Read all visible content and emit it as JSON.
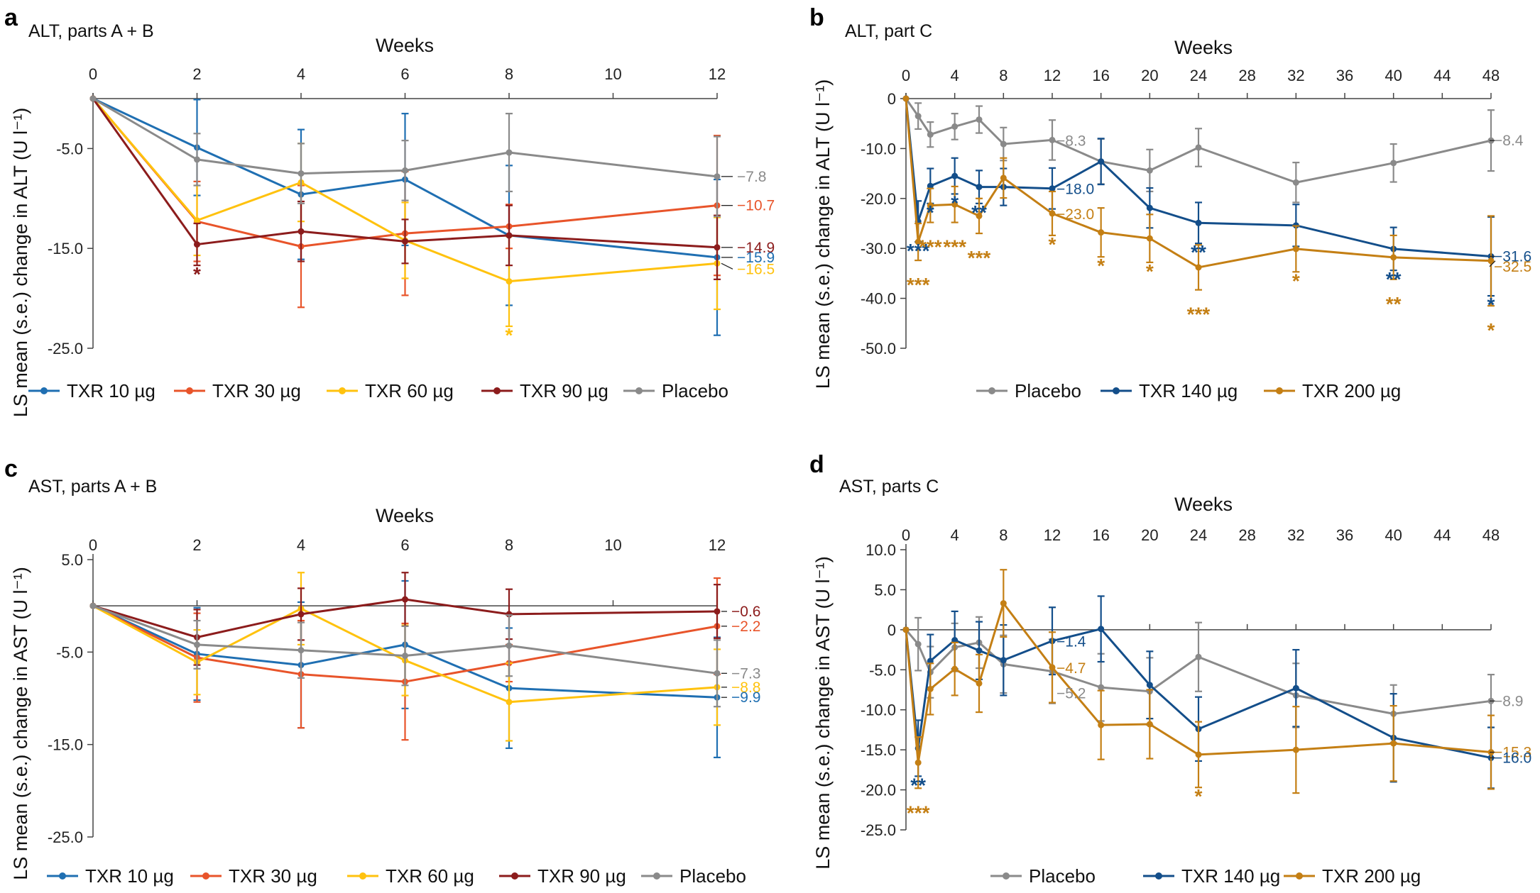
{
  "colors": {
    "TXR 10 µg": "#1f6fb2",
    "TXR 30 µg": "#e8542a",
    "TXR 60 µg": "#ffc20e",
    "TXR 90 µg": "#8c1c1c",
    "Placebo": "#8a8a8a",
    "TXR 140 µg": "#134e8a",
    "TXR 200 µg": "#c47f14"
  },
  "chart_data": [
    {
      "panel": "a",
      "type": "line",
      "title": "ALT, parts A + B",
      "xlabel": "Weeks",
      "ylabel": "LS mean (s.e.) change in ALT (U l⁻¹)",
      "x_ticks": [
        "0",
        "2",
        "4",
        "6",
        "8",
        "10",
        "12"
      ],
      "y_ticks": [
        "-5.0",
        "-15.0",
        "-25.0"
      ],
      "xlim": [
        0,
        12
      ],
      "ylim": [
        -25,
        0
      ],
      "grid": false,
      "legend": "bottom",
      "series": [
        {
          "name": "TXR 10 µg",
          "x": [
            0,
            2,
            4,
            6,
            8,
            12
          ],
          "values": [
            0,
            -4.9,
            -9.6,
            -8.1,
            -13.7,
            -15.9
          ],
          "err": [
            0,
            4.8,
            6.5,
            6.6,
            7.0,
            7.8
          ]
        },
        {
          "name": "TXR 30 µg",
          "x": [
            0,
            2,
            4,
            6,
            8,
            12
          ],
          "values": [
            0,
            -12.3,
            -14.8,
            -13.5,
            -12.8,
            -10.7
          ],
          "err": [
            0,
            4.0,
            6.1,
            6.2,
            2.2,
            7.0
          ]
        },
        {
          "name": "TXR 60 µg",
          "x": [
            0,
            2,
            4,
            6,
            8,
            12
          ],
          "values": [
            0,
            -12.2,
            -8.4,
            -14.2,
            -18.3,
            -16.5
          ],
          "err": [
            0,
            3.5,
            3.9,
            3.8,
            4.5,
            4.6
          ]
        },
        {
          "name": "TXR 90 µg",
          "x": [
            0,
            2,
            4,
            6,
            8,
            12
          ],
          "values": [
            0,
            -14.6,
            -13.3,
            -14.3,
            -13.7,
            -14.9
          ],
          "err": [
            0,
            2.1,
            3.0,
            2.2,
            3.0,
            3.2
          ]
        },
        {
          "name": "Placebo",
          "x": [
            0,
            2,
            4,
            6,
            8,
            12
          ],
          "values": [
            0,
            -6.1,
            -7.5,
            -7.2,
            -5.4,
            -7.8
          ],
          "err": [
            0,
            2.6,
            3.0,
            3.0,
            3.9,
            4.0
          ]
        }
      ],
      "end_labels": [
        {
          "series": "Placebo",
          "text": "−7.8"
        },
        {
          "series": "TXR 30 µg",
          "text": "−10.7"
        },
        {
          "series": "TXR 90 µg",
          "text": "−14.9"
        },
        {
          "series": "TXR 10 µg",
          "text": "−15.9"
        },
        {
          "series": "TXR 60 µg",
          "text": "−16.5"
        }
      ],
      "annotations": [
        {
          "series": "TXR 90 µg",
          "x": 2,
          "text": "*"
        },
        {
          "series": "TXR 60 µg",
          "x": 8,
          "text": "*"
        }
      ]
    },
    {
      "panel": "b",
      "type": "line",
      "title": "ALT, part C",
      "xlabel": "Weeks",
      "ylabel": "LS mean (s.e.) change in ALT (U l⁻¹)",
      "x_ticks": [
        "0",
        "4",
        "8",
        "12",
        "16",
        "20",
        "24",
        "28",
        "32",
        "36",
        "40",
        "44",
        "48"
      ],
      "y_ticks": [
        "0",
        "-10.0",
        "-20.0",
        "-30.0",
        "-40.0",
        "-50.0"
      ],
      "xlim": [
        0,
        48
      ],
      "ylim": [
        -50,
        0
      ],
      "grid": false,
      "legend": "bottom",
      "series": [
        {
          "name": "Placebo",
          "x": [
            0,
            1,
            2,
            4,
            6,
            8,
            12,
            16,
            20,
            24,
            32,
            40,
            48
          ],
          "values": [
            0,
            -3.5,
            -7.2,
            -5.6,
            -4.2,
            -9.1,
            -8.3,
            -12.6,
            -14.4,
            -9.8,
            -16.8,
            -12.9,
            -8.4
          ],
          "err": [
            0,
            2.6,
            2.5,
            2.6,
            2.7,
            3.3,
            4.0,
            4.5,
            4.2,
            3.8,
            4.0,
            3.8,
            6.1
          ]
        },
        {
          "name": "TXR 140 µg",
          "x": [
            0,
            1,
            2,
            4,
            6,
            8,
            12,
            16,
            20,
            24,
            32,
            40,
            48
          ],
          "values": [
            0,
            -24.6,
            -17.5,
            -15.5,
            -17.7,
            -17.7,
            -18.0,
            -12.6,
            -21.9,
            -24.9,
            -25.4,
            -30.1,
            -31.6
          ],
          "err": [
            0,
            4.1,
            3.5,
            3.6,
            3.3,
            3.7,
            4.1,
            4.6,
            4.0,
            4.1,
            4.2,
            4.3,
            7.9
          ]
        },
        {
          "name": "TXR 200 µg",
          "x": [
            0,
            1,
            2,
            4,
            6,
            8,
            12,
            16,
            20,
            24,
            32,
            40,
            48
          ],
          "values": [
            0,
            -28.7,
            -21.4,
            -21.2,
            -23.5,
            -15.9,
            -23.0,
            -26.8,
            -28.0,
            -33.8,
            -30.1,
            -31.8,
            -32.5
          ],
          "err": [
            0,
            3.7,
            3.4,
            3.6,
            3.5,
            4.0,
            4.4,
            4.9,
            4.8,
            4.5,
            4.6,
            4.4,
            9.0
          ]
        }
      ],
      "end_labels": [
        {
          "series": "Placebo",
          "text": "−8.4"
        },
        {
          "series": "TXR 140 µg",
          "text": "−31.6"
        },
        {
          "series": "TXR 200 µg",
          "text": "−32.5"
        }
      ],
      "inline_labels": [
        {
          "series": "Placebo",
          "x": 12,
          "text": "−8.3"
        },
        {
          "series": "TXR 140 µg",
          "x": 12,
          "text": "−18.0"
        },
        {
          "series": "TXR 200 µg",
          "x": 12,
          "text": "−23.0"
        }
      ],
      "annotations": [
        {
          "series": "TXR 140 µg",
          "x": 1,
          "text": "***"
        },
        {
          "series": "TXR 200 µg",
          "x": 1,
          "text": "***"
        },
        {
          "series": "TXR 140 µg",
          "x": 2,
          "text": "*"
        },
        {
          "series": "TXR 200 µg",
          "x": 2,
          "text": "***"
        },
        {
          "series": "TXR 140 µg",
          "x": 4,
          "text": "*"
        },
        {
          "series": "TXR 200 µg",
          "x": 4,
          "text": "***"
        },
        {
          "series": "TXR 140 µg",
          "x": 6,
          "text": "**"
        },
        {
          "series": "TXR 200 µg",
          "x": 6,
          "text": "***"
        },
        {
          "series": "TXR 200 µg",
          "x": 12,
          "text": "*"
        },
        {
          "series": "TXR 200 µg",
          "x": 16,
          "text": "*"
        },
        {
          "series": "TXR 200 µg",
          "x": 20,
          "text": "*"
        },
        {
          "series": "TXR 140 µg",
          "x": 24,
          "text": "**"
        },
        {
          "series": "TXR 200 µg",
          "x": 24,
          "text": "***"
        },
        {
          "series": "TXR 200 µg",
          "x": 32,
          "text": "*"
        },
        {
          "series": "TXR 140 µg",
          "x": 40,
          "text": "**"
        },
        {
          "series": "TXR 200 µg",
          "x": 40,
          "text": "**"
        },
        {
          "series": "TXR 140 µg",
          "x": 48,
          "text": "*"
        },
        {
          "series": "TXR 200 µg",
          "x": 48,
          "text": "*"
        }
      ]
    },
    {
      "panel": "c",
      "type": "line",
      "title": "AST, parts A + B",
      "xlabel": "Weeks",
      "ylabel": "LS mean (s.e.) change in AST (U l⁻¹)",
      "x_ticks": [
        "0",
        "2",
        "4",
        "6",
        "8",
        "10",
        "12"
      ],
      "y_ticks": [
        "5.0",
        "-5.0",
        "-15.0",
        "-25.0"
      ],
      "xlim": [
        0,
        12
      ],
      "ylim": [
        -25,
        5
      ],
      "grid": false,
      "legend": "bottom",
      "series": [
        {
          "name": "TXR 10 µg",
          "x": [
            0,
            2,
            4,
            6,
            8,
            12
          ],
          "values": [
            0,
            -5.2,
            -6.4,
            -4.2,
            -8.9,
            -9.9
          ],
          "err": [
            0,
            5.0,
            6.8,
            6.9,
            6.5,
            6.5
          ]
        },
        {
          "name": "TXR 30 µg",
          "x": [
            0,
            2,
            4,
            6,
            8,
            12
          ],
          "values": [
            0,
            -5.6,
            -7.4,
            -8.2,
            -6.2,
            -2.2
          ],
          "err": [
            0,
            4.8,
            5.8,
            6.3,
            2.0,
            5.2
          ]
        },
        {
          "name": "TXR 60 µg",
          "x": [
            0,
            2,
            4,
            6,
            8,
            12
          ],
          "values": [
            0,
            -6.1,
            -0.3,
            -5.9,
            -10.4,
            -8.8
          ],
          "err": [
            0,
            3.5,
            3.9,
            3.8,
            4.2,
            4.1
          ]
        },
        {
          "name": "TXR 90 µg",
          "x": [
            0,
            2,
            4,
            6,
            8,
            12
          ],
          "values": [
            0,
            -3.4,
            -0.9,
            0.7,
            -0.9,
            -0.6
          ],
          "err": [
            0,
            3.0,
            2.8,
            2.9,
            2.7,
            2.9
          ]
        },
        {
          "name": "Placebo",
          "x": [
            0,
            2,
            4,
            6,
            8,
            12
          ],
          "values": [
            0,
            -4.2,
            -4.8,
            -5.4,
            -4.3,
            -7.3
          ],
          "err": [
            0,
            2.6,
            3.0,
            3.2,
            3.3,
            3.6
          ]
        }
      ],
      "end_labels": [
        {
          "series": "TXR 90 µg",
          "text": "−0.6"
        },
        {
          "series": "TXR 30 µg",
          "text": "−2.2"
        },
        {
          "series": "Placebo",
          "text": "−7.3"
        },
        {
          "series": "TXR 60 µg",
          "text": "−8.8"
        },
        {
          "series": "TXR 10 µg",
          "text": "−9.9"
        }
      ],
      "annotations": []
    },
    {
      "panel": "d",
      "type": "line",
      "title": "AST, parts C",
      "xlabel": "Weeks",
      "ylabel": "LS mean (s.e.) change in AST (U l⁻¹)",
      "x_ticks": [
        "0",
        "4",
        "8",
        "12",
        "16",
        "20",
        "24",
        "28",
        "32",
        "36",
        "40",
        "44",
        "48"
      ],
      "y_ticks": [
        "10.0",
        "5.0",
        "0",
        "-5.0",
        "-10.0",
        "-15.0",
        "-20.0",
        "-25.0"
      ],
      "xlim": [
        0,
        48
      ],
      "ylim": [
        -25,
        10
      ],
      "grid": false,
      "legend": "bottom",
      "series": [
        {
          "name": "Placebo",
          "x": [
            0,
            1,
            2,
            4,
            6,
            8,
            12,
            16,
            20,
            24,
            32,
            40,
            48
          ],
          "values": [
            0,
            -1.8,
            -5.3,
            -2.2,
            -1.6,
            -4.3,
            -5.2,
            -7.2,
            -7.7,
            -3.4,
            -8.2,
            -10.5,
            -8.9
          ],
          "err": [
            0,
            3.3,
            3.2,
            3.0,
            3.2,
            3.6,
            4.0,
            4.2,
            4.2,
            4.3,
            4.0,
            3.6,
            3.3
          ]
        },
        {
          "name": "TXR 140 µg",
          "x": [
            0,
            1,
            2,
            4,
            6,
            8,
            12,
            16,
            20,
            24,
            32,
            40,
            48
          ],
          "values": [
            0,
            -14.8,
            -3.9,
            -1.3,
            -2.6,
            -3.8,
            -1.4,
            0.1,
            -6.9,
            -12.4,
            -7.3,
            -13.5,
            -16.0
          ],
          "err": [
            0,
            3.5,
            3.3,
            3.6,
            3.6,
            4.4,
            4.2,
            4.1,
            4.2,
            4.0,
            4.8,
            5.5,
            3.8
          ]
        },
        {
          "name": "TXR 200 µg",
          "x": [
            0,
            1,
            2,
            4,
            6,
            8,
            12,
            16,
            20,
            24,
            32,
            40,
            48
          ],
          "values": [
            0,
            -16.6,
            -7.4,
            -4.9,
            -6.7,
            3.3,
            -4.7,
            -11.9,
            -11.8,
            -15.6,
            -15.0,
            -14.2,
            -15.3
          ],
          "err": [
            0,
            3.2,
            3.2,
            3.3,
            3.6,
            4.2,
            4.4,
            4.3,
            4.3,
            4.1,
            5.4,
            4.7,
            4.6
          ]
        }
      ],
      "end_labels": [
        {
          "series": "Placebo",
          "text": "−8.9"
        },
        {
          "series": "TXR 200 µg",
          "text": "−15.3"
        },
        {
          "series": "TXR 140 µg",
          "text": "−16.0"
        }
      ],
      "inline_labels": [
        {
          "series": "TXR 140 µg",
          "x": 12,
          "text": "−1.4"
        },
        {
          "series": "TXR 200 µg",
          "x": 12,
          "text": "−4.7"
        },
        {
          "series": "Placebo",
          "x": 12,
          "text": "−5.2"
        }
      ],
      "annotations": [
        {
          "series": "TXR 140 µg",
          "x": 1,
          "text": "**"
        },
        {
          "series": "TXR 200 µg",
          "x": 1,
          "text": "***"
        },
        {
          "series": "TXR 200 µg",
          "x": 24,
          "text": "*"
        }
      ]
    }
  ]
}
